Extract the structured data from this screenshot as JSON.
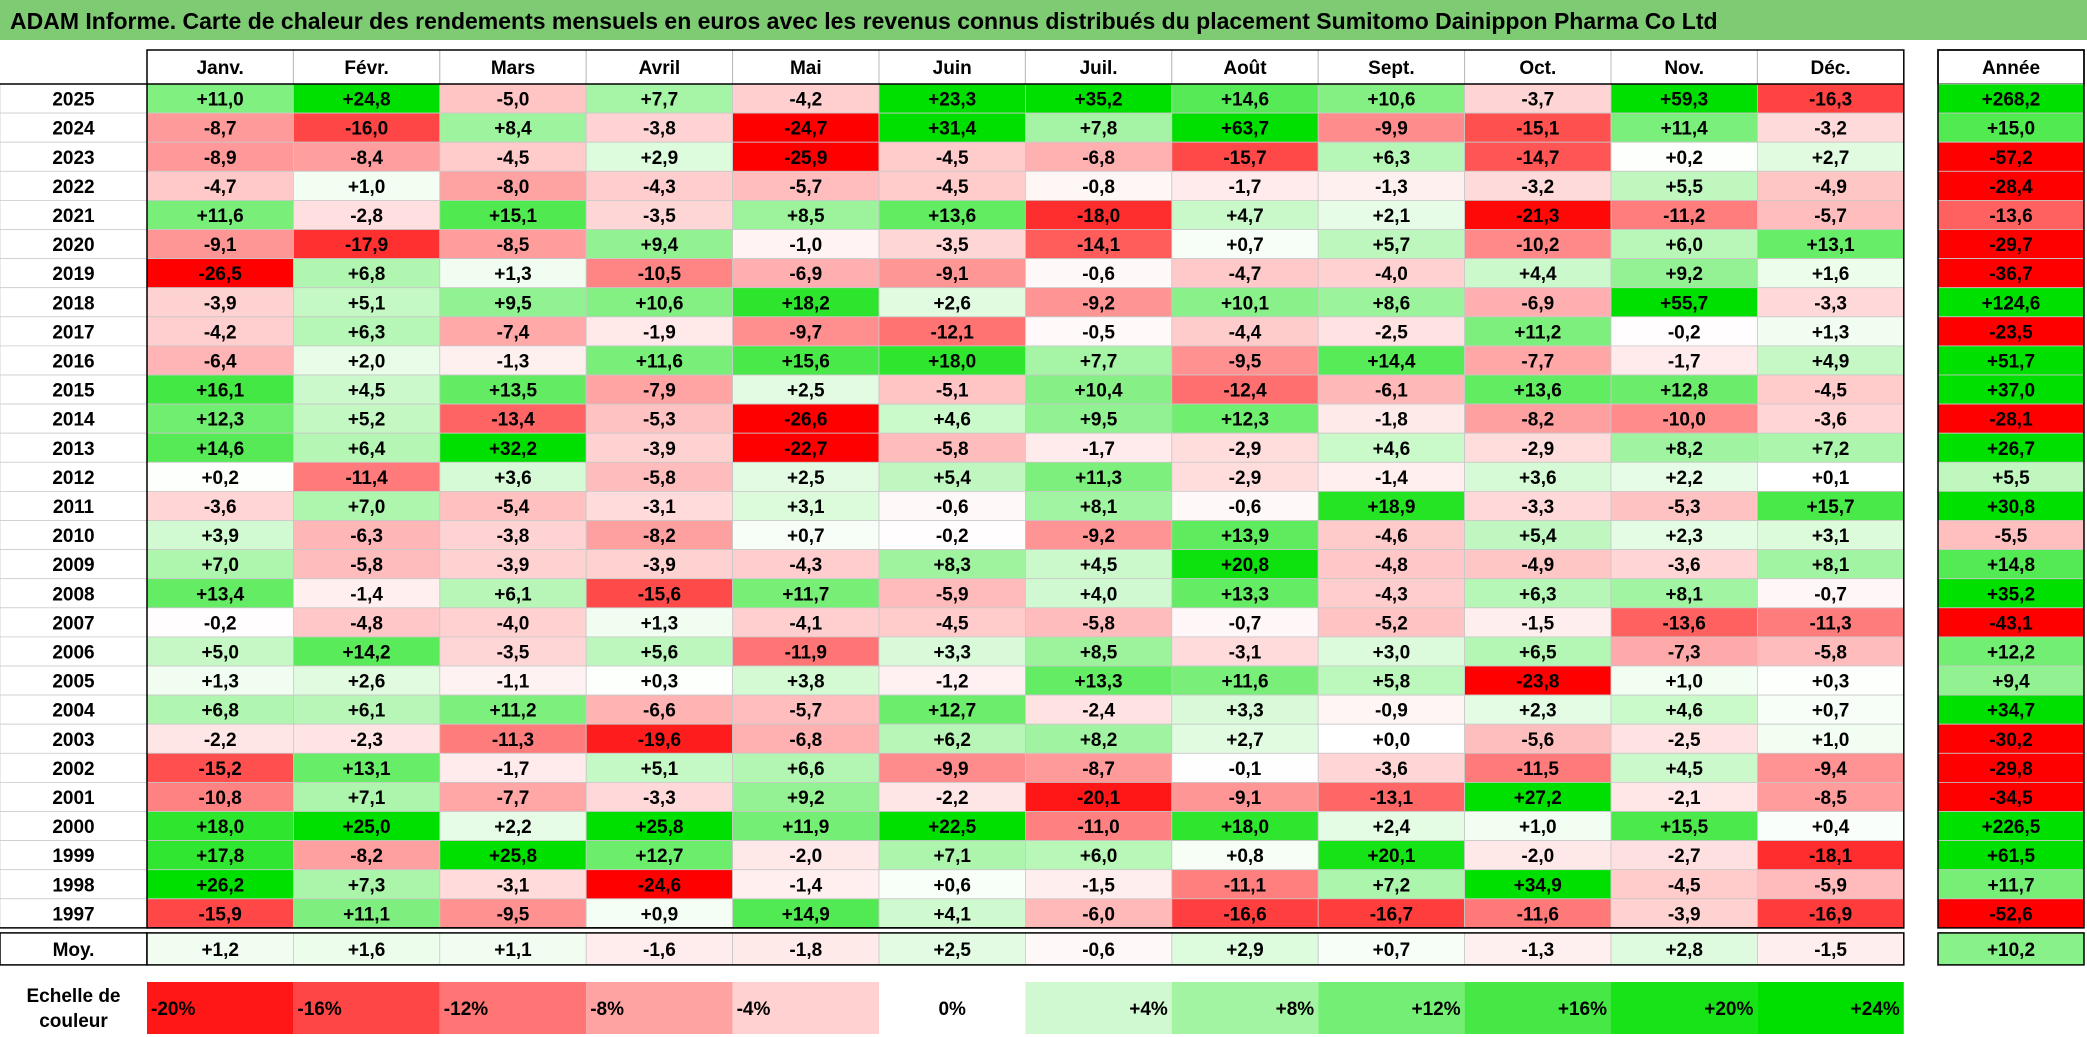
{
  "title": "ADAM Informe. Carte de chaleur des rendements mensuels en euros avec les revenus connus distribués du placement Sumitomo Dainippon Pharma Co Ltd",
  "chart_data": {
    "type": "heatmap",
    "months": [
      "Janv.",
      "Févr.",
      "Mars",
      "Avril",
      "Mai",
      "Juin",
      "Juil.",
      "Août",
      "Sept.",
      "Oct.",
      "Nov.",
      "Déc."
    ],
    "year_header": "Année",
    "rows": [
      {
        "year": "2025",
        "values": [
          11.0,
          24.8,
          -5.0,
          7.7,
          -4.2,
          23.3,
          35.2,
          14.6,
          10.6,
          -3.7,
          59.3,
          -16.3
        ],
        "annual": 268.2
      },
      {
        "year": "2024",
        "values": [
          -8.7,
          -16.0,
          8.4,
          -3.8,
          -24.7,
          31.4,
          7.8,
          63.7,
          -9.9,
          -15.1,
          11.4,
          -3.2
        ],
        "annual": 15.0
      },
      {
        "year": "2023",
        "values": [
          -8.9,
          -8.4,
          -4.5,
          2.9,
          -25.9,
          -4.5,
          -6.8,
          -15.7,
          6.3,
          -14.7,
          0.2,
          2.7
        ],
        "annual": -57.2
      },
      {
        "year": "2022",
        "values": [
          -4.7,
          1.0,
          -8.0,
          -4.3,
          -5.7,
          -4.5,
          -0.8,
          -1.7,
          -1.3,
          -3.2,
          5.5,
          -4.9
        ],
        "annual": -28.4
      },
      {
        "year": "2021",
        "values": [
          11.6,
          -2.8,
          15.1,
          -3.5,
          8.5,
          13.6,
          -18.0,
          4.7,
          2.1,
          -21.3,
          -11.2,
          -5.7
        ],
        "annual": -13.6
      },
      {
        "year": "2020",
        "values": [
          -9.1,
          -17.9,
          -8.5,
          9.4,
          -1.0,
          -3.5,
          -14.1,
          0.7,
          5.7,
          -10.2,
          6.0,
          13.1
        ],
        "annual": -29.7
      },
      {
        "year": "2019",
        "values": [
          -26.5,
          6.8,
          1.3,
          -10.5,
          -6.9,
          -9.1,
          -0.6,
          -4.7,
          -4.0,
          4.4,
          9.2,
          1.6
        ],
        "annual": -36.7
      },
      {
        "year": "2018",
        "values": [
          -3.9,
          5.1,
          9.5,
          10.6,
          18.2,
          2.6,
          -9.2,
          10.1,
          8.6,
          -6.9,
          55.7,
          -3.3
        ],
        "annual": 124.6
      },
      {
        "year": "2017",
        "values": [
          -4.2,
          6.3,
          -7.4,
          -1.9,
          -9.7,
          -12.1,
          -0.5,
          -4.4,
          -2.5,
          11.2,
          -0.2,
          1.3
        ],
        "annual": -23.5
      },
      {
        "year": "2016",
        "values": [
          -6.4,
          2.0,
          -1.3,
          11.6,
          15.6,
          18.0,
          7.7,
          -9.5,
          14.4,
          -7.7,
          -1.7,
          4.9
        ],
        "annual": 51.7
      },
      {
        "year": "2015",
        "values": [
          16.1,
          4.5,
          13.5,
          -7.9,
          2.5,
          -5.1,
          10.4,
          -12.4,
          -6.1,
          13.6,
          12.8,
          -4.5
        ],
        "annual": 37.0
      },
      {
        "year": "2014",
        "values": [
          12.3,
          5.2,
          -13.4,
          -5.3,
          -26.6,
          4.6,
          9.5,
          12.3,
          -1.8,
          -8.2,
          -10.0,
          -3.6
        ],
        "annual": -28.1
      },
      {
        "year": "2013",
        "values": [
          14.6,
          6.4,
          32.2,
          -3.9,
          -22.7,
          -5.8,
          -1.7,
          -2.9,
          4.6,
          -2.9,
          8.2,
          7.2
        ],
        "annual": 26.7
      },
      {
        "year": "2012",
        "values": [
          0.2,
          -11.4,
          3.6,
          -5.8,
          2.5,
          5.4,
          11.3,
          -2.9,
          -1.4,
          3.6,
          2.2,
          0.1
        ],
        "annual": 5.5
      },
      {
        "year": "2011",
        "values": [
          -3.6,
          7.0,
          -5.4,
          -3.1,
          3.1,
          -0.6,
          8.1,
          -0.6,
          18.9,
          -3.3,
          -5.3,
          15.7
        ],
        "annual": 30.8
      },
      {
        "year": "2010",
        "values": [
          3.9,
          -6.3,
          -3.8,
          -8.2,
          0.7,
          -0.2,
          -9.2,
          13.9,
          -4.6,
          5.4,
          2.3,
          3.1
        ],
        "annual": -5.5
      },
      {
        "year": "2009",
        "values": [
          7.0,
          -5.8,
          -3.9,
          -3.9,
          -4.3,
          8.3,
          4.5,
          20.8,
          -4.8,
          -4.9,
          -3.6,
          8.1
        ],
        "annual": 14.8
      },
      {
        "year": "2008",
        "values": [
          13.4,
          -1.4,
          6.1,
          -15.6,
          11.7,
          -5.9,
          4.0,
          13.3,
          -4.3,
          6.3,
          8.1,
          -0.7
        ],
        "annual": 35.2
      },
      {
        "year": "2007",
        "values": [
          -0.2,
          -4.8,
          -4.0,
          1.3,
          -4.1,
          -4.5,
          -5.8,
          -0.7,
          -5.2,
          -1.5,
          -13.6,
          -11.3
        ],
        "annual": -43.1
      },
      {
        "year": "2006",
        "values": [
          5.0,
          14.2,
          -3.5,
          5.6,
          -11.9,
          3.3,
          8.5,
          -3.1,
          3.0,
          6.5,
          -7.3,
          -5.8
        ],
        "annual": 12.2
      },
      {
        "year": "2005",
        "values": [
          1.3,
          2.6,
          -1.1,
          0.3,
          3.8,
          -1.2,
          13.3,
          11.6,
          5.8,
          -23.8,
          1.0,
          0.3
        ],
        "annual": 9.4
      },
      {
        "year": "2004",
        "values": [
          6.8,
          6.1,
          11.2,
          -6.6,
          -5.7,
          12.7,
          -2.4,
          3.3,
          -0.9,
          2.3,
          4.6,
          0.7
        ],
        "annual": 34.7
      },
      {
        "year": "2003",
        "values": [
          -2.2,
          -2.3,
          -11.3,
          -19.6,
          -6.8,
          6.2,
          8.2,
          2.7,
          0.0,
          -5.6,
          -2.5,
          1.0
        ],
        "annual": -30.2
      },
      {
        "year": "2002",
        "values": [
          -15.2,
          13.1,
          -1.7,
          5.1,
          6.6,
          -9.9,
          -8.7,
          -0.1,
          -3.6,
          -11.5,
          4.5,
          -9.4
        ],
        "annual": -29.8
      },
      {
        "year": "2001",
        "values": [
          -10.8,
          7.1,
          -7.7,
          -3.3,
          9.2,
          -2.2,
          -20.1,
          -9.1,
          -13.1,
          27.2,
          -2.1,
          -8.5
        ],
        "annual": -34.5
      },
      {
        "year": "2000",
        "values": [
          18.0,
          25.0,
          2.2,
          25.8,
          11.9,
          22.5,
          -11.0,
          18.0,
          2.4,
          1.0,
          15.5,
          0.4
        ],
        "annual": 226.5
      },
      {
        "year": "1999",
        "values": [
          17.8,
          -8.2,
          25.8,
          12.7,
          -2.0,
          7.1,
          6.0,
          0.8,
          20.1,
          -2.0,
          -2.7,
          -18.1
        ],
        "annual": 61.5
      },
      {
        "year": "1998",
        "values": [
          26.2,
          7.3,
          -3.1,
          -24.6,
          -1.4,
          0.6,
          -1.5,
          -11.1,
          7.2,
          34.9,
          -4.5,
          -5.9
        ],
        "annual": 11.7
      },
      {
        "year": "1997",
        "values": [
          -15.9,
          11.1,
          -9.5,
          0.9,
          14.9,
          4.1,
          -6.0,
          -16.6,
          -16.7,
          -11.6,
          -3.9,
          -16.9
        ],
        "annual": -52.6
      }
    ],
    "average_label": "Moy.",
    "average": {
      "values": [
        1.2,
        1.6,
        1.1,
        -1.6,
        -1.8,
        2.5,
        -0.6,
        2.9,
        0.7,
        -1.3,
        2.8,
        -1.5
      ],
      "annual": 10.2
    },
    "scale_label": [
      "Echelle de",
      "couleur"
    ],
    "scale": [
      {
        "label": "-20%",
        "value": -20
      },
      {
        "label": "-16%",
        "value": -16
      },
      {
        "label": "-12%",
        "value": -12
      },
      {
        "label": "-8%",
        "value": -8
      },
      {
        "label": "-4%",
        "value": -4
      },
      {
        "label": "0%",
        "value": 0
      },
      {
        "label": "+4%",
        "value": 4
      },
      {
        "label": "+8%",
        "value": 8
      },
      {
        "label": "+12%",
        "value": 12
      },
      {
        "label": "+16%",
        "value": 16
      },
      {
        "label": "+20%",
        "value": 20
      },
      {
        "label": "+24%",
        "value": 24
      }
    ],
    "colors": {
      "negative": "#ff0000",
      "neutral": "#ffffff",
      "positive": "#00e000",
      "title_bg": "#7ecb74"
    }
  }
}
